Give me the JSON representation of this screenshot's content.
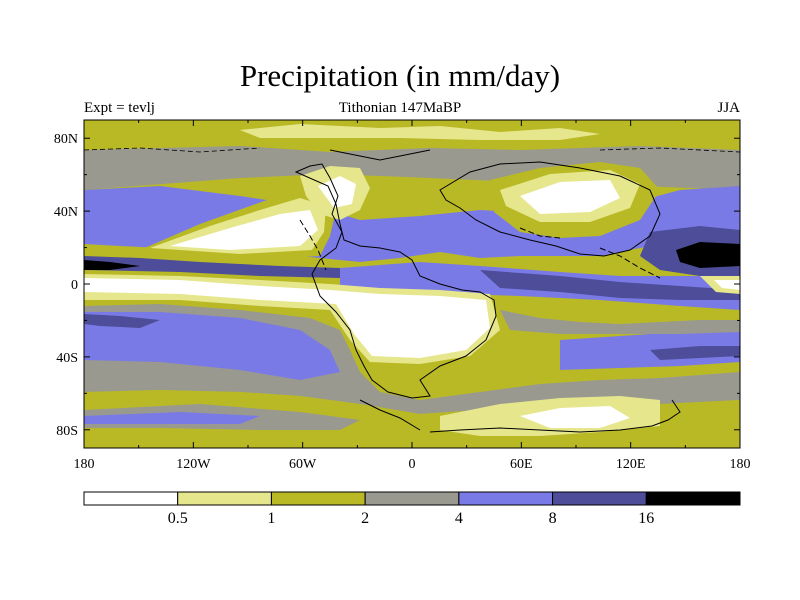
{
  "title": "Precipitation (in mm/day)",
  "left_label": "Expt = tevlj",
  "center_label": "Tithonian 147MaBP",
  "right_label": "JJA",
  "x_ticks": [
    {
      "label": "180",
      "lon": -180
    },
    {
      "label": "120W",
      "lon": -120
    },
    {
      "label": "60W",
      "lon": -60
    },
    {
      "label": "0",
      "lon": 0
    },
    {
      "label": "60E",
      "lon": 60
    },
    {
      "label": "120E",
      "lon": 120
    },
    {
      "label": "180",
      "lon": 180
    }
  ],
  "y_ticks": [
    {
      "label": "80N",
      "lat": 80
    },
    {
      "label": "40N",
      "lat": 40
    },
    {
      "label": "0",
      "lat": 0
    },
    {
      "label": "40S",
      "lat": -40
    },
    {
      "label": "80S",
      "lat": -80
    }
  ],
  "colorbar": {
    "colors": [
      "#ffffff",
      "#e6e68c",
      "#b9b926",
      "#999990",
      "#7a7ae6",
      "#4d4d99",
      "#000000"
    ],
    "labels": [
      "0.5",
      "1",
      "2",
      "4",
      "8",
      "16"
    ]
  },
  "palette": {
    "white": "#ffffff",
    "light_yellow": "#e6e68c",
    "olive": "#b9b926",
    "gray": "#999990",
    "blue": "#7a7ae6",
    "dark_blue": "#4d4d99",
    "black": "#000000"
  }
}
